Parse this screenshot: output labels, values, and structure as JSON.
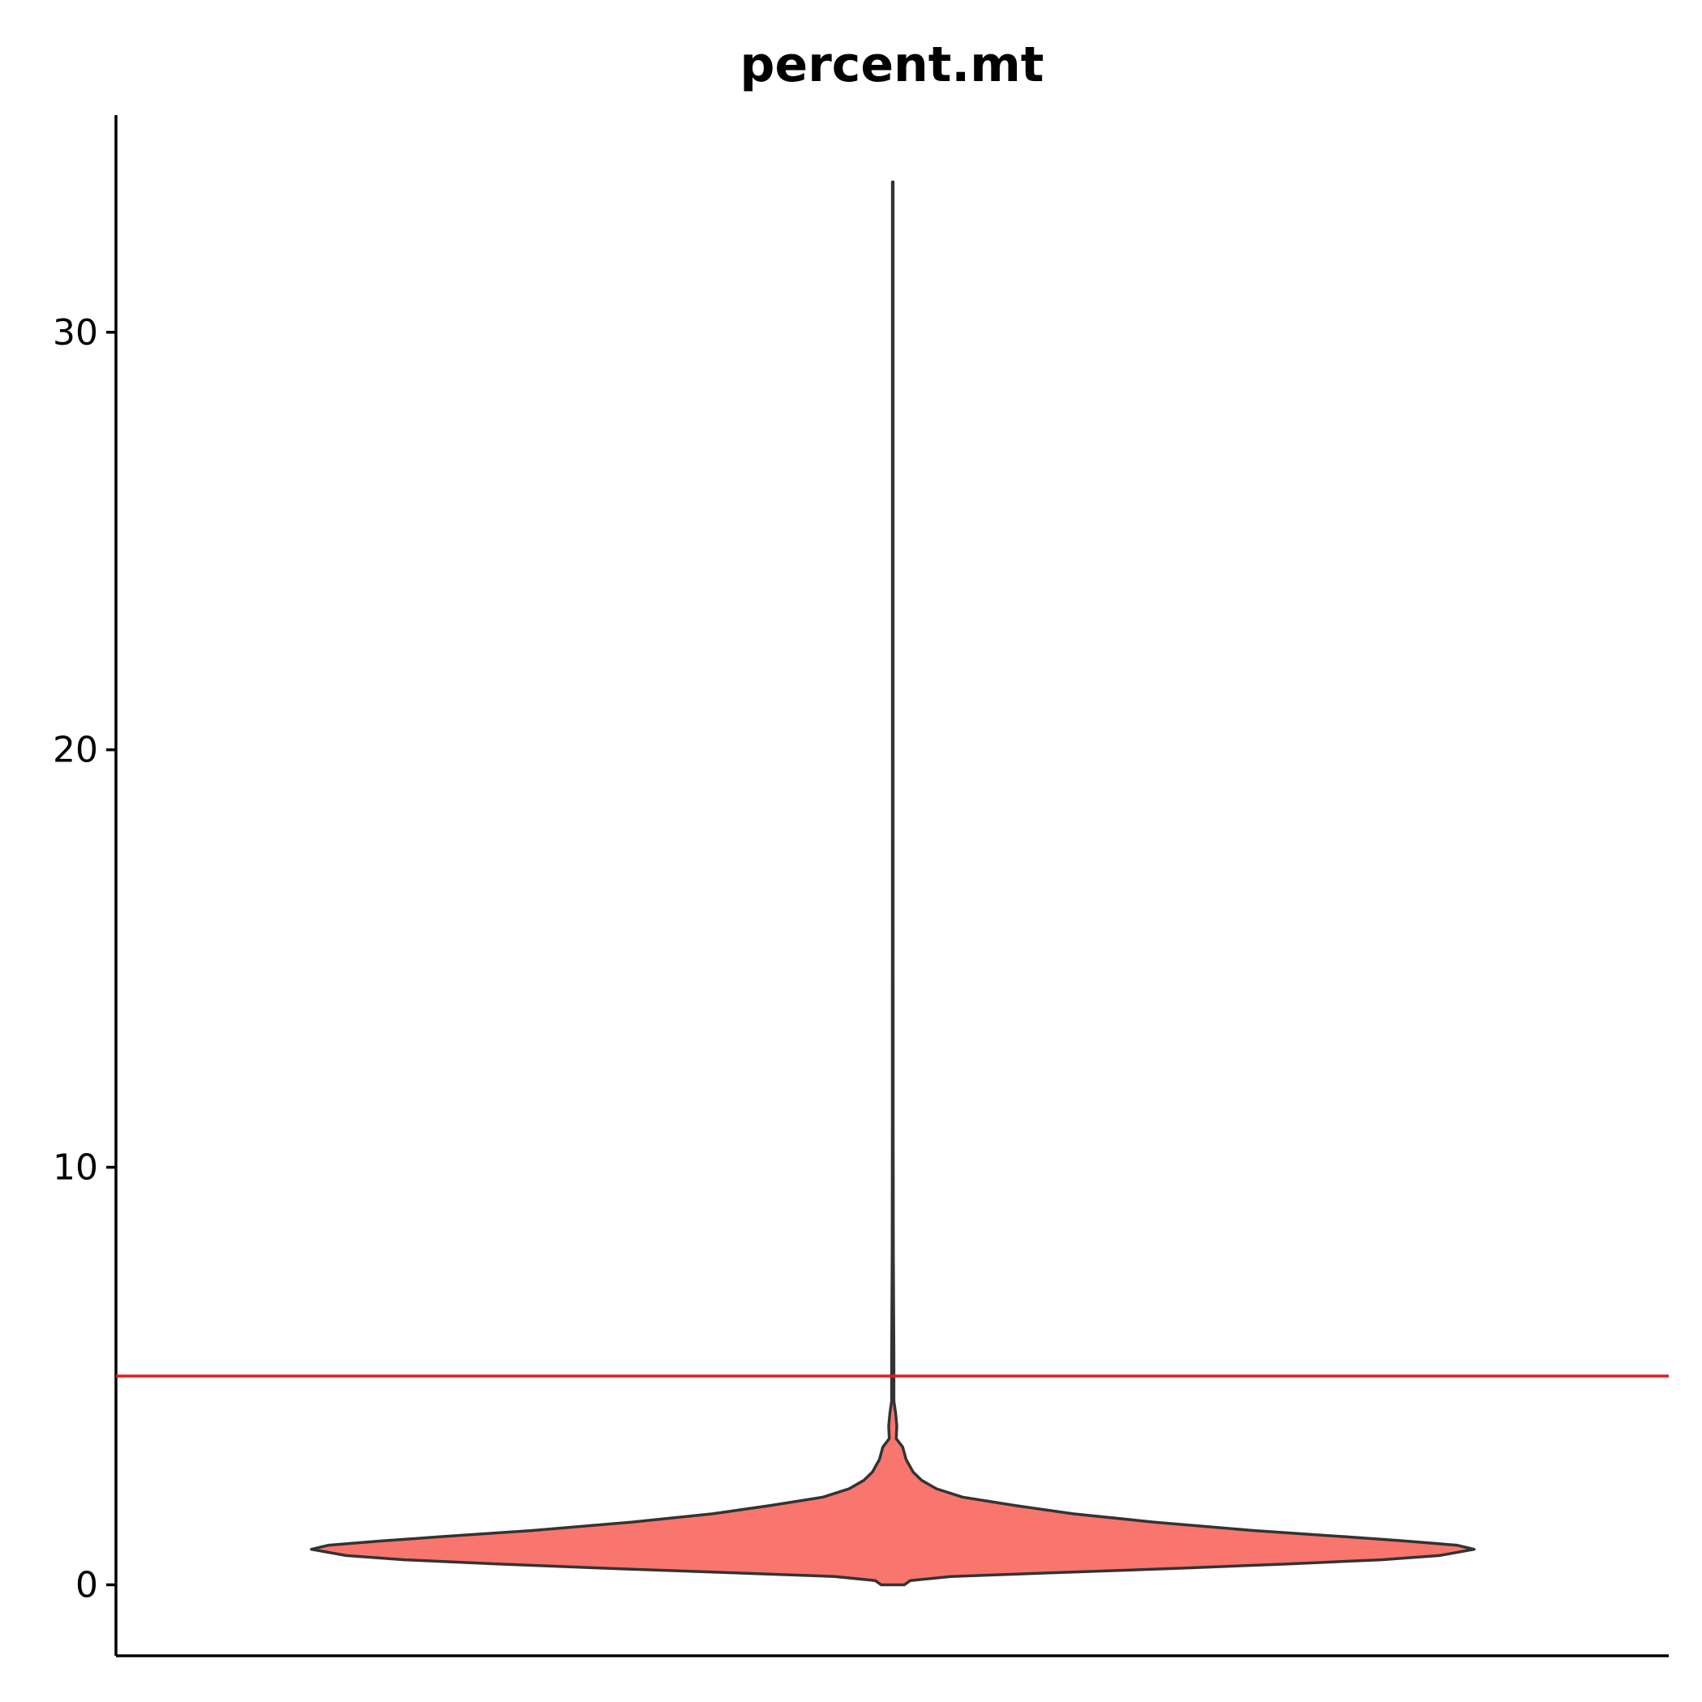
{
  "chart_data": {
    "type": "violin",
    "title": "percent.mt",
    "xlabel": "",
    "ylabel": "",
    "ylim": [
      -1.7,
      35.2
    ],
    "yticks": [
      0,
      10,
      20,
      30
    ],
    "ytick_labels": [
      "0",
      "10",
      "20",
      "30"
    ],
    "series": [
      {
        "name": "percent.mt",
        "min": 0.0,
        "max": 33.6,
        "density_profile": [
          {
            "y": 0.0,
            "w": 0.02
          },
          {
            "y": 0.1,
            "w": 0.03
          },
          {
            "y": 0.2,
            "w": 0.1
          },
          {
            "y": 0.3,
            "w": 0.3
          },
          {
            "y": 0.4,
            "w": 0.5
          },
          {
            "y": 0.5,
            "w": 0.68
          },
          {
            "y": 0.6,
            "w": 0.84
          },
          {
            "y": 0.7,
            "w": 0.94
          },
          {
            "y": 0.85,
            "w": 1.0
          },
          {
            "y": 0.95,
            "w": 0.97
          },
          {
            "y": 1.05,
            "w": 0.88
          },
          {
            "y": 1.15,
            "w": 0.78
          },
          {
            "y": 1.3,
            "w": 0.62
          },
          {
            "y": 1.5,
            "w": 0.45
          },
          {
            "y": 1.7,
            "w": 0.31
          },
          {
            "y": 1.9,
            "w": 0.21
          },
          {
            "y": 2.1,
            "w": 0.12
          },
          {
            "y": 2.3,
            "w": 0.075
          },
          {
            "y": 2.5,
            "w": 0.05
          },
          {
            "y": 2.7,
            "w": 0.035
          },
          {
            "y": 3.0,
            "w": 0.023
          },
          {
            "y": 3.3,
            "w": 0.017
          },
          {
            "y": 3.5,
            "w": 0.006
          },
          {
            "y": 3.8,
            "w": 0.007
          },
          {
            "y": 4.1,
            "w": 0.005
          },
          {
            "y": 4.4,
            "w": 0.002
          },
          {
            "y": 5.5,
            "w": 0.002
          },
          {
            "y": 6.5,
            "w": 0.0015
          },
          {
            "y": 8.0,
            "w": 0.001
          },
          {
            "y": 11.0,
            "w": 0.0007
          },
          {
            "y": 20.0,
            "w": 0.0005
          },
          {
            "y": 33.6,
            "w": 0.0005
          }
        ]
      }
    ],
    "reference_lines": [
      {
        "axis": "y",
        "value": 5,
        "color": "#e31a1c"
      }
    ],
    "colors": {
      "violin_fill": "#f8766d",
      "violin_stroke": "#333333",
      "axis": "#000000",
      "reference_line": "#e31a1c"
    },
    "grid": false,
    "legend": "none"
  }
}
